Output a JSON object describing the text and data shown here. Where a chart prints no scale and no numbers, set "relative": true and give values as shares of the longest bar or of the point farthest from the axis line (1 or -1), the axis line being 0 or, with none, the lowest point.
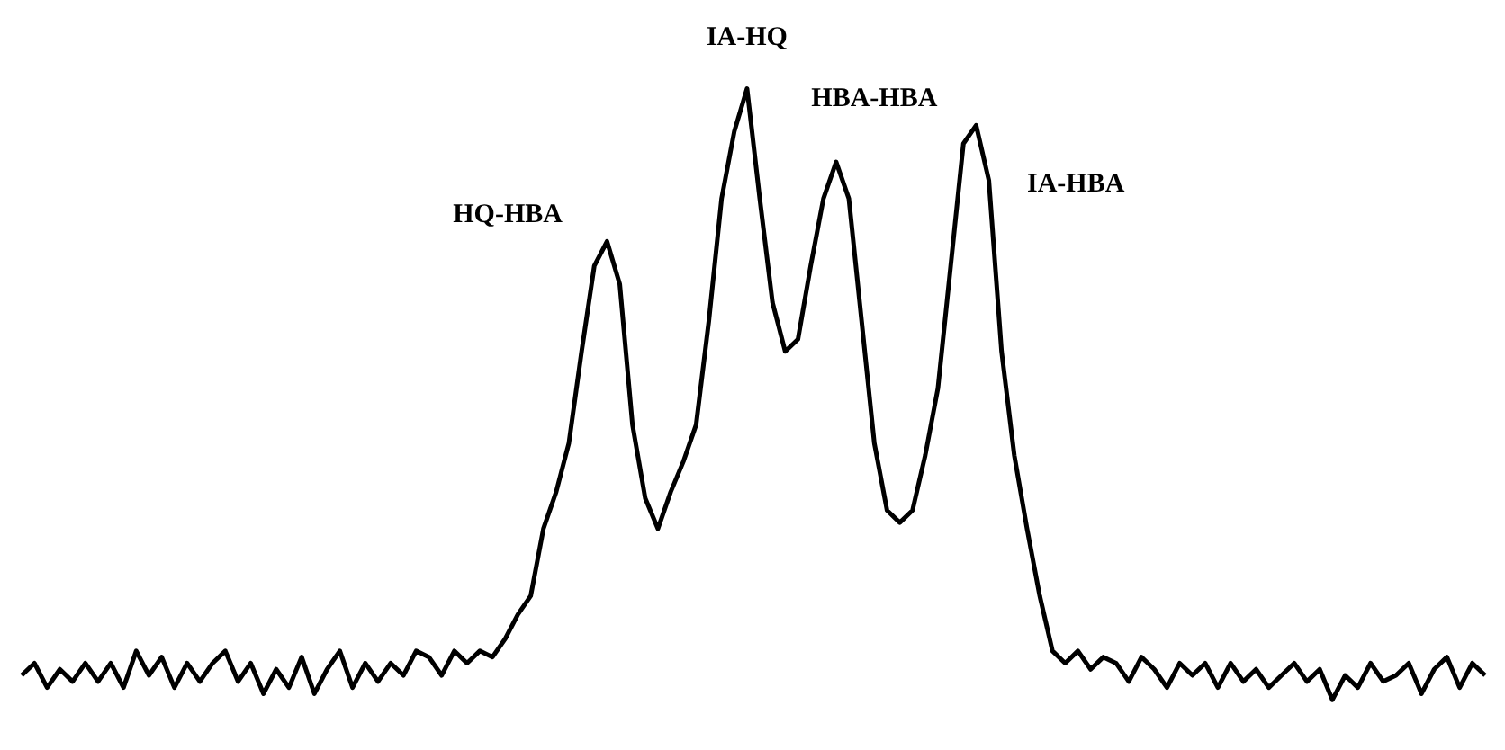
{
  "chart_data": {
    "type": "line",
    "relative": true,
    "color": "#000000",
    "categories": [
      null,
      null,
      null,
      null,
      null,
      null,
      null,
      null,
      null,
      null,
      null,
      null,
      null,
      null,
      null,
      null,
      null,
      null,
      null,
      null,
      null,
      null,
      null,
      null,
      null,
      null,
      null,
      null,
      null,
      null,
      null,
      null,
      null,
      null,
      null,
      null,
      null,
      null,
      null,
      null,
      null,
      null,
      null,
      null,
      null,
      null,
      null,
      null,
      null,
      null,
      null,
      null,
      null,
      null,
      null,
      null,
      null,
      null,
      null,
      null,
      null,
      null,
      null,
      null,
      null,
      null,
      null,
      null,
      null,
      null,
      null,
      null,
      null,
      null,
      null,
      null,
      null,
      null,
      null,
      null,
      null,
      null,
      null,
      null,
      null,
      null,
      null,
      null,
      null,
      null,
      null,
      null,
      null,
      null,
      null,
      null,
      null,
      null,
      null,
      null,
      null,
      null,
      null,
      null,
      null,
      null,
      null,
      null,
      null,
      null,
      null,
      null,
      null,
      null,
      null,
      null
    ],
    "values": [
      0.04,
      0.06,
      0.02,
      0.05,
      0.03,
      0.06,
      0.03,
      0.06,
      0.02,
      0.08,
      0.04,
      0.07,
      0.02,
      0.06,
      0.03,
      0.06,
      0.08,
      0.03,
      0.06,
      0.01,
      0.05,
      0.02,
      0.07,
      0.01,
      0.05,
      0.08,
      0.02,
      0.06,
      0.03,
      0.06,
      0.04,
      0.08,
      0.07,
      0.04,
      0.08,
      0.06,
      0.08,
      0.07,
      0.1,
      0.14,
      0.17,
      0.28,
      0.34,
      0.42,
      0.57,
      0.71,
      0.75,
      0.68,
      0.45,
      0.33,
      0.28,
      0.34,
      0.39,
      0.45,
      0.62,
      0.82,
      0.93,
      1,
      0.82,
      0.65,
      0.57,
      0.59,
      0.71,
      0.82,
      0.88,
      0.82,
      0.62,
      0.42,
      0.31,
      0.29,
      0.31,
      0.4,
      0.51,
      0.71,
      0.91,
      0.94,
      0.85,
      0.57,
      0.4,
      0.28,
      0.17,
      0.08,
      0.06,
      0.08,
      0.05,
      0.07,
      0.06,
      0.03,
      0.07,
      0.05,
      0.02,
      0.06,
      0.04,
      0.06,
      0.02,
      0.06,
      0.03,
      0.05,
      0.02,
      0.04,
      0.06,
      0.03,
      0.05,
      0,
      0.04,
      0.02,
      0.06,
      0.03,
      0.04,
      0.06,
      0.01,
      0.05,
      0.07,
      0.02,
      0.06,
      0.04
    ],
    "annotations": [
      "HQ-HBA",
      "IA-HQ",
      "HBA-HBA",
      "IA-HBA"
    ]
  }
}
